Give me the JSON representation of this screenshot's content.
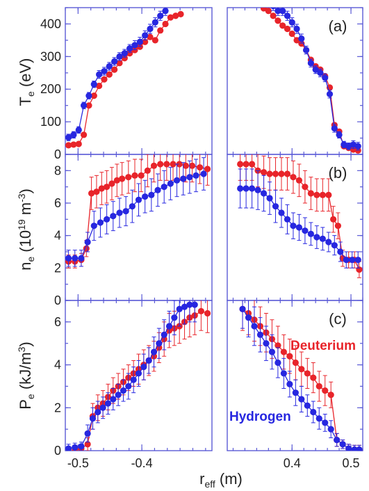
{
  "colors": {
    "deuterium": "#e8242a",
    "hydrogen": "#2727e0",
    "axis": "#5a5ad6"
  },
  "xlabel": {
    "main": "r",
    "sub": "eff",
    "unit": " (m)"
  },
  "series_labels": {
    "deuterium": "Deuterium",
    "hydrogen": "Hydrogen"
  },
  "chart_data": [
    {
      "type": "scatter",
      "panel_label": "(a)",
      "ylabel": {
        "main": "T",
        "sub": "e",
        "unit": " (eV)"
      },
      "ylim": [
        0,
        450
      ],
      "yticks": [
        "0",
        "100",
        "200",
        "300",
        "400"
      ],
      "left": {
        "xlim": [
          -0.52,
          -0.29
        ],
        "xticks": [
          "-0.5",
          "-0.4"
        ],
        "series": [
          {
            "name": "Deuterium",
            "x": [
              -0.515,
              -0.507,
              -0.499,
              -0.491,
              -0.483,
              -0.475,
              -0.467,
              -0.459,
              -0.451,
              -0.443,
              -0.435,
              -0.427,
              -0.419,
              -0.411,
              -0.403,
              -0.395,
              -0.387,
              -0.379,
              -0.371,
              -0.363,
              -0.355,
              -0.347,
              -0.339
            ],
            "y": [
              28,
              30,
              32,
              60,
              150,
              180,
              210,
              230,
              245,
              260,
              280,
              295,
              310,
              320,
              330,
              345,
              360,
              350,
              380,
              400,
              420,
              425,
              430
            ]
          },
          {
            "name": "Hydrogen",
            "x": [
              -0.515,
              -0.507,
              -0.499,
              -0.491,
              -0.483,
              -0.475,
              -0.467,
              -0.459,
              -0.451,
              -0.443,
              -0.435,
              -0.427,
              -0.419,
              -0.411,
              -0.403,
              -0.395,
              -0.387,
              -0.379,
              -0.371,
              -0.363
            ],
            "y": [
              52,
              60,
              75,
              150,
              180,
              215,
              245,
              255,
              270,
              285,
              300,
              310,
              325,
              335,
              345,
              365,
              385,
              405,
              425,
              440
            ],
            "err": [
              10,
              10,
              10,
              10,
              10,
              10,
              12,
              12,
              12,
              12,
              12,
              12,
              12,
              14,
              14,
              14,
              14,
              14,
              14,
              14
            ]
          }
        ]
      },
      "right": {
        "xlim": [
          0.29,
          0.52
        ],
        "xticks": [
          "0.4",
          "0.5"
        ],
        "series": [
          {
            "name": "Deuterium",
            "x": [
              0.352,
              0.36,
              0.368,
              0.376,
              0.384,
              0.392,
              0.4,
              0.408,
              0.416,
              0.424,
              0.432,
              0.44,
              0.448,
              0.456,
              0.464,
              0.472,
              0.48,
              0.488,
              0.496,
              0.504,
              0.512
            ],
            "y": [
              448,
              440,
              425,
              410,
              395,
              385,
              370,
              350,
              340,
              320,
              290,
              270,
              260,
              240,
              205,
              90,
              70,
              25,
              20,
              15,
              12
            ]
          },
          {
            "name": "Hydrogen",
            "x": [
              0.368,
              0.376,
              0.384,
              0.392,
              0.4,
              0.408,
              0.416,
              0.424,
              0.432,
              0.44,
              0.448,
              0.456,
              0.464,
              0.472,
              0.48,
              0.488,
              0.496,
              0.504,
              0.512
            ],
            "y": [
              455,
              440,
              440,
              425,
              405,
              385,
              355,
              320,
              280,
              260,
              250,
              235,
              185,
              80,
              60,
              30,
              25,
              30,
              25
            ],
            "err": [
              14,
              14,
              14,
              14,
              14,
              14,
              14,
              12,
              12,
              12,
              12,
              12,
              12,
              12,
              10,
              10,
              10,
              12,
              12
            ]
          }
        ]
      }
    },
    {
      "type": "scatter",
      "panel_label": "(b)",
      "ylabel": {
        "main": "n",
        "sub": "e",
        "unit": " (10",
        "sup": "19",
        "unit2": " m",
        "sup2": "-3",
        "close": ")"
      },
      "ylim": [
        0,
        9
      ],
      "yticks": [
        "0",
        "2",
        "4",
        "6",
        "8"
      ],
      "left": {
        "xlim": [
          -0.52,
          -0.29
        ],
        "xticks": [
          "-0.5",
          "-0.4"
        ],
        "series": [
          {
            "name": "Deuterium",
            "x": [
              -0.515,
              -0.505,
              -0.495,
              -0.487,
              -0.479,
              -0.471,
              -0.463,
              -0.455,
              -0.447,
              -0.439,
              -0.431,
              -0.421,
              -0.411,
              -0.401,
              -0.391,
              -0.381,
              -0.371,
              -0.361,
              -0.351,
              -0.341,
              -0.331,
              -0.321,
              -0.309,
              -0.297
            ],
            "y": [
              2.4,
              2.4,
              2.5,
              3.2,
              6.6,
              6.7,
              6.9,
              7.0,
              7.2,
              7.4,
              7.5,
              7.6,
              7.7,
              7.7,
              8.0,
              8.3,
              8.4,
              8.4,
              8.4,
              8.4,
              8.3,
              8.3,
              8.2,
              8.1
            ],
            "err": [
              0.4,
              0.4,
              0.4,
              0.5,
              1.0,
              1.0,
              1.0,
              1.0,
              1.0,
              1.0,
              1.0,
              1.0,
              1.0,
              1.0,
              1.0,
              1.0,
              1.0,
              1.0,
              1.0,
              1.0,
              1.0,
              1.0,
              1.0,
              1.0
            ]
          },
          {
            "name": "Hydrogen",
            "x": [
              -0.515,
              -0.505,
              -0.495,
              -0.485,
              -0.475,
              -0.465,
              -0.455,
              -0.445,
              -0.435,
              -0.425,
              -0.415,
              -0.405,
              -0.395,
              -0.385,
              -0.375,
              -0.365,
              -0.355,
              -0.345,
              -0.335,
              -0.325,
              -0.315,
              -0.303
            ],
            "y": [
              2.6,
              2.6,
              2.6,
              3.6,
              4.6,
              4.8,
              5.0,
              5.2,
              5.4,
              5.5,
              5.8,
              6.2,
              6.4,
              6.5,
              6.8,
              7.0,
              7.2,
              7.4,
              7.5,
              7.6,
              7.7,
              7.8
            ],
            "err": [
              0.5,
              0.5,
              0.5,
              0.6,
              0.9,
              0.9,
              0.9,
              0.9,
              0.9,
              0.9,
              1.0,
              1.0,
              1.0,
              1.0,
              1.0,
              1.0,
              1.0,
              1.0,
              1.0,
              1.0,
              1.0,
              1.0
            ]
          }
        ]
      },
      "right": {
        "xlim": [
          0.29,
          0.52
        ],
        "xticks": [
          "0.4",
          "0.5"
        ],
        "series": [
          {
            "name": "Deuterium",
            "x": [
              0.312,
              0.322,
              0.332,
              0.342,
              0.352,
              0.362,
              0.372,
              0.382,
              0.392,
              0.402,
              0.412,
              0.422,
              0.432,
              0.442,
              0.452,
              0.462,
              0.47,
              0.478,
              0.486,
              0.496,
              0.506,
              0.514
            ],
            "y": [
              8.4,
              8.4,
              8.4,
              8.0,
              7.9,
              7.8,
              7.8,
              7.8,
              7.8,
              7.6,
              7.4,
              7.0,
              6.6,
              6.5,
              6.5,
              6.5,
              5.0,
              4.6,
              2.6,
              2.5,
              2.5,
              1.9
            ],
            "err": [
              1.0,
              1.0,
              1.0,
              1.0,
              1.0,
              1.0,
              1.0,
              1.0,
              1.0,
              1.0,
              1.0,
              1.0,
              1.0,
              1.0,
              1.0,
              1.0,
              0.8,
              0.8,
              0.5,
              0.5,
              0.5,
              0.5
            ]
          },
          {
            "name": "Hydrogen",
            "x": [
              0.312,
              0.322,
              0.332,
              0.342,
              0.352,
              0.362,
              0.372,
              0.382,
              0.392,
              0.402,
              0.412,
              0.422,
              0.432,
              0.442,
              0.452,
              0.462,
              0.472,
              0.482,
              0.492,
              0.502,
              0.512
            ],
            "y": [
              6.9,
              6.9,
              6.9,
              6.8,
              6.6,
              6.3,
              5.8,
              5.4,
              5.0,
              4.6,
              4.5,
              4.3,
              4.1,
              3.9,
              3.8,
              3.6,
              3.4,
              3.0,
              2.5,
              2.5,
              2.5
            ],
            "err": [
              1.2,
              1.2,
              1.2,
              1.2,
              1.1,
              1.0,
              1.0,
              0.9,
              0.9,
              0.8,
              0.8,
              0.8,
              0.7,
              0.7,
              0.7,
              0.6,
              0.6,
              0.6,
              0.5,
              0.5,
              0.5
            ]
          }
        ]
      }
    },
    {
      "type": "scatter",
      "panel_label": "(c)",
      "ylabel": {
        "main": "P",
        "sub": "e",
        "unit": " (kJ/m",
        "sup": "3",
        "close": ")"
      },
      "ylim": [
        0,
        7
      ],
      "yticks": [
        "0",
        "2",
        "4",
        "6"
      ],
      "left": {
        "xlim": [
          -0.52,
          -0.29
        ],
        "xticks": [
          "-0.5",
          "-0.4"
        ],
        "series": [
          {
            "name": "Deuterium",
            "x": [
              -0.505,
              -0.495,
              -0.485,
              -0.477,
              -0.469,
              -0.461,
              -0.453,
              -0.445,
              -0.437,
              -0.429,
              -0.421,
              -0.413,
              -0.405,
              -0.397,
              -0.389,
              -0.381,
              -0.373,
              -0.365,
              -0.357,
              -0.349,
              -0.341,
              -0.333,
              -0.325,
              -0.317,
              -0.307,
              -0.297
            ],
            "y": [
              0.05,
              0.1,
              0.3,
              1.6,
              2.0,
              2.2,
              2.5,
              2.8,
              3.0,
              3.2,
              3.4,
              3.6,
              3.8,
              4.0,
              4.2,
              4.4,
              4.8,
              5.2,
              5.6,
              5.7,
              5.8,
              6.0,
              6.2,
              6.3,
              6.5,
              6.4
            ],
            "err": [
              0.2,
              0.2,
              0.3,
              0.6,
              0.6,
              0.6,
              0.6,
              0.6,
              0.6,
              0.6,
              0.6,
              0.6,
              0.7,
              0.7,
              0.7,
              0.7,
              0.7,
              0.8,
              0.8,
              0.8,
              0.8,
              0.8,
              0.9,
              0.9,
              0.9,
              0.9
            ]
          },
          {
            "name": "Hydrogen",
            "x": [
              -0.515,
              -0.505,
              -0.495,
              -0.485,
              -0.477,
              -0.469,
              -0.461,
              -0.453,
              -0.445,
              -0.437,
              -0.429,
              -0.421,
              -0.413,
              -0.405,
              -0.397,
              -0.389,
              -0.381,
              -0.373,
              -0.365,
              -0.357,
              -0.349,
              -0.341,
              -0.333,
              -0.325,
              -0.317
            ],
            "y": [
              0.1,
              0.15,
              0.2,
              0.8,
              1.5,
              1.8,
              2.0,
              2.2,
              2.4,
              2.6,
              2.8,
              3.0,
              3.3,
              3.6,
              3.9,
              4.2,
              4.6,
              5.0,
              5.4,
              5.8,
              6.2,
              6.6,
              6.7,
              6.8,
              6.8
            ],
            "err": [
              0.2,
              0.2,
              0.2,
              0.4,
              0.5,
              0.5,
              0.5,
              0.5,
              0.5,
              0.5,
              0.5,
              0.6,
              0.6,
              0.6,
              0.6,
              0.6,
              0.7,
              0.7,
              0.7,
              0.7,
              0.8,
              0.8,
              0.8,
              0.8,
              0.8
            ]
          }
        ]
      },
      "right": {
        "xlim": [
          0.29,
          0.52
        ],
        "xticks": [
          "0.4",
          "0.5"
        ],
        "series": [
          {
            "name": "Deuterium",
            "x": [
              0.316,
              0.326,
              0.336,
              0.346,
              0.356,
              0.366,
              0.376,
              0.386,
              0.396,
              0.406,
              0.416,
              0.426,
              0.436,
              0.446,
              0.456,
              0.466,
              0.476,
              0.486,
              0.496,
              0.506,
              0.514
            ],
            "y": [
              6.6,
              6.4,
              6.1,
              5.8,
              5.5,
              5.2,
              4.9,
              4.6,
              4.4,
              4.1,
              3.8,
              3.6,
              3.4,
              3.0,
              2.8,
              2.6,
              0.5,
              0.3,
              0.1,
              0.05,
              0.05
            ],
            "err": [
              1.0,
              1.0,
              1.0,
              0.9,
              0.9,
              0.9,
              0.9,
              0.8,
              0.8,
              0.8,
              0.8,
              0.7,
              0.7,
              0.7,
              0.7,
              0.6,
              0.3,
              0.2,
              0.2,
              0.2,
              0.2
            ]
          },
          {
            "name": "Hydrogen",
            "x": [
              0.316,
              0.326,
              0.336,
              0.346,
              0.356,
              0.366,
              0.376,
              0.386,
              0.396,
              0.406,
              0.416,
              0.426,
              0.436,
              0.446,
              0.456,
              0.466,
              0.476,
              0.486,
              0.496,
              0.506,
              0.514
            ],
            "y": [
              6.6,
              6.2,
              5.8,
              5.4,
              5.0,
              4.6,
              4.1,
              3.6,
              3.1,
              2.7,
              2.4,
              2.1,
              1.8,
              1.5,
              1.3,
              1.0,
              0.5,
              0.3,
              0.1,
              0.05,
              0.05
            ],
            "err": [
              0.9,
              0.9,
              0.9,
              0.8,
              0.8,
              0.8,
              0.7,
              0.7,
              0.6,
              0.6,
              0.6,
              0.5,
              0.5,
              0.5,
              0.4,
              0.4,
              0.3,
              0.2,
              0.2,
              0.2,
              0.2
            ]
          }
        ]
      }
    }
  ]
}
